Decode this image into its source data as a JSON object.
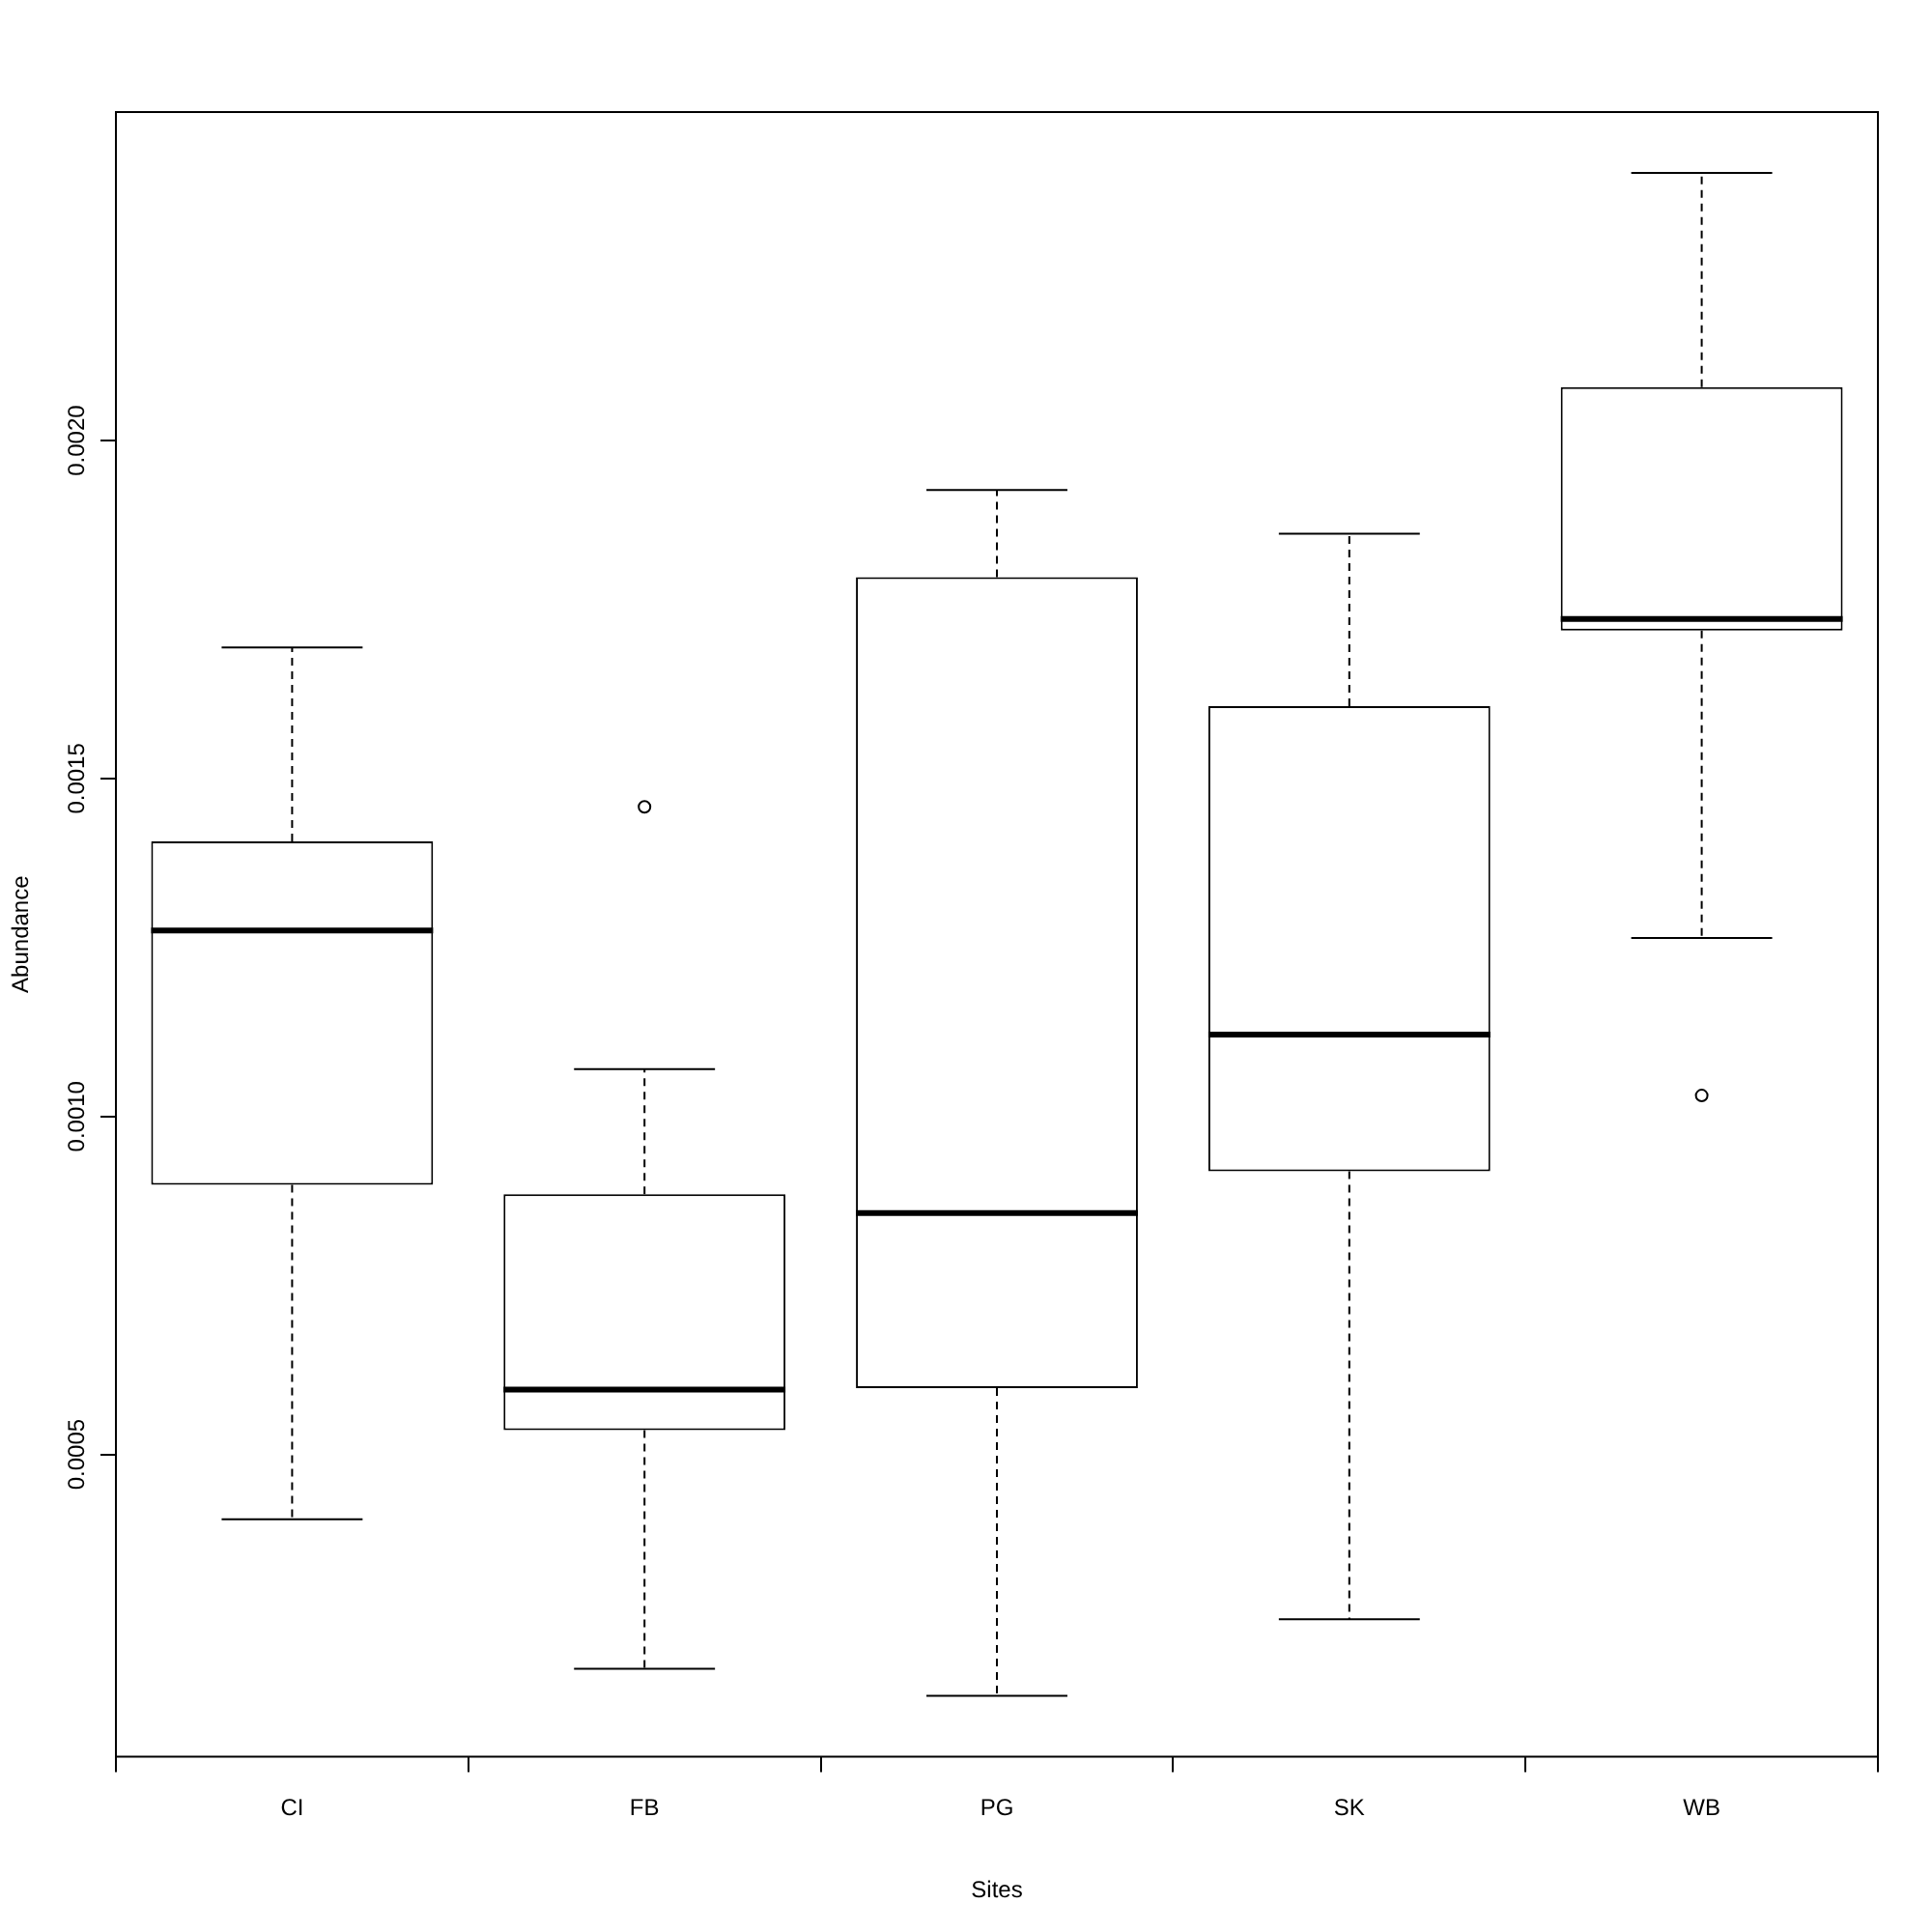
{
  "chart_data": {
    "type": "box",
    "xlabel": "Sites",
    "ylabel": "Abundance",
    "color": "#000000",
    "categories": [
      "CI",
      "FB",
      "PG",
      "SK",
      "WB"
    ],
    "boxes": [
      {
        "low": 0.000404,
        "q1": 0.000899,
        "median": 0.001275,
        "q3": 0.001407,
        "high": 0.001694
      },
      {
        "low": 0.000183,
        "q1": 0.000536,
        "median": 0.000596,
        "q3": 0.000885,
        "high": 0.00107,
        "outliers": [
          0.001458
        ]
      },
      {
        "low": 0.000143,
        "q1": 0.000598,
        "median": 0.000857,
        "q3": 0.001798,
        "high": 0.001927
      },
      {
        "low": 0.000256,
        "q1": 0.000919,
        "median": 0.001121,
        "q3": 0.001607,
        "high": 0.001862
      },
      {
        "low": 0.001264,
        "q1": 0.001719,
        "median": 0.001736,
        "q3": 0.002079,
        "high": 0.002396,
        "outliers": [
          0.001031
        ]
      }
    ],
    "ylim": [
      5.3e-05,
      0.002486
    ],
    "yticks": [
      {
        "value": 0.0005,
        "label": "0.0005"
      },
      {
        "value": 0.001,
        "label": "0.0010"
      },
      {
        "value": 0.0015,
        "label": "0.0015"
      },
      {
        "value": 0.002,
        "label": "0.0020"
      }
    ]
  }
}
